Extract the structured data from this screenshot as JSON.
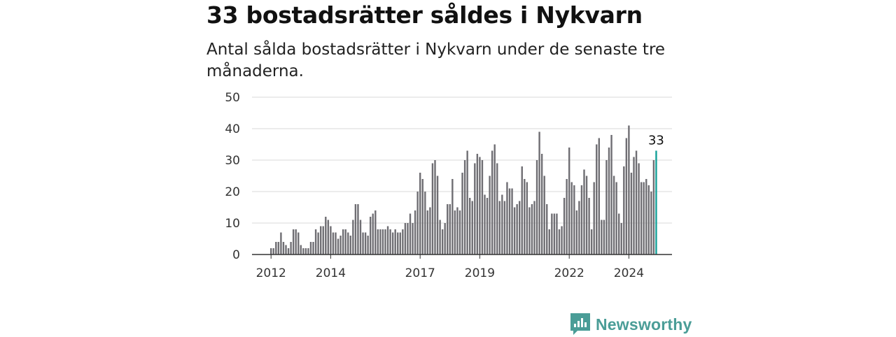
{
  "header": {
    "title": "33 bostadsrätter såldes i Nykvarn",
    "subtitle": "Antal sålda bostadsrätter i Nykvarn under de senaste tre månaderna."
  },
  "brand": {
    "name": "Newsworthy",
    "color": "#4a9d97",
    "icon": "newsworthy-logo-icon"
  },
  "chart_data": {
    "type": "bar",
    "bar_color": "#6f6e73",
    "highlight_color": "#14a098",
    "yticks": [
      0,
      10,
      20,
      30,
      40,
      50
    ],
    "ylim": [
      0,
      50
    ],
    "grid": true,
    "x_tick_labels": [
      "2012",
      "2014",
      "2017",
      "2019",
      "2022",
      "2024"
    ],
    "highlight_label": "33",
    "values": [
      2,
      2,
      4,
      4,
      7,
      4,
      3,
      2,
      4,
      8,
      8,
      7,
      3,
      2,
      2,
      2,
      4,
      4,
      8,
      7,
      9,
      9,
      12,
      11,
      9,
      7,
      7,
      5,
      6,
      8,
      8,
      7,
      6,
      11,
      16,
      16,
      11,
      7,
      7,
      6,
      12,
      13,
      14,
      8,
      8,
      8,
      8,
      9,
      8,
      7,
      8,
      7,
      7,
      8,
      10,
      10,
      13,
      10,
      14,
      20,
      26,
      24,
      20,
      14,
      15,
      29,
      30,
      25,
      11,
      8,
      10,
      16,
      16,
      24,
      14,
      15,
      14,
      26,
      30,
      33,
      18,
      17,
      29,
      32,
      31,
      30,
      19,
      18,
      25,
      33,
      35,
      29,
      17,
      19,
      17,
      23,
      21,
      21,
      15,
      16,
      17,
      28,
      24,
      23,
      15,
      16,
      17,
      30,
      39,
      32,
      25,
      16,
      8,
      13,
      13,
      13,
      8,
      9,
      18,
      24,
      34,
      23,
      22,
      14,
      17,
      22,
      27,
      25,
      18,
      8,
      23,
      35,
      37,
      11,
      11,
      30,
      34,
      38,
      25,
      23,
      13,
      10,
      28,
      37,
      41,
      26,
      31,
      33,
      29,
      23,
      23,
      24,
      22,
      20,
      30,
      33
    ]
  }
}
